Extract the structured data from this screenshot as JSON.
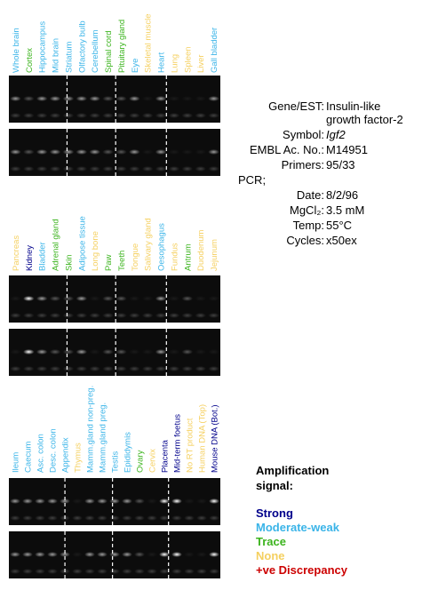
{
  "groups": [
    {
      "lanes": [
        {
          "name": "Whole brain",
          "color": "#3ab4e8"
        },
        {
          "name": "Cortex",
          "color": "#3cb41e"
        },
        {
          "name": "Hippocampus",
          "color": "#3ab4e8"
        },
        {
          "name": "Mid brain",
          "color": "#3ab4e8"
        },
        {
          "name": "Striatum",
          "color": "#3ab4e8"
        },
        {
          "name": "Olfactory bulb",
          "color": "#3ab4e8"
        },
        {
          "name": "Cerebellum",
          "color": "#3ab4e8"
        },
        {
          "name": "Spinal cord",
          "color": "#3cb41e"
        },
        {
          "name": "Pituitary gland",
          "color": "#3cb41e"
        },
        {
          "name": "Eye",
          "color": "#3ab4e8"
        },
        {
          "name": "Skeletal muscle",
          "color": "#f5d060"
        },
        {
          "name": "Heart",
          "color": "#3ab4e8"
        },
        {
          "name": "Lung",
          "color": "#f5d060"
        },
        {
          "name": "Spleen",
          "color": "#f5d060"
        },
        {
          "name": "Liver",
          "color": "#f5d060"
        },
        {
          "name": "Gall bladder",
          "color": "#3ab4e8"
        }
      ]
    },
    {
      "lanes": [
        {
          "name": "Pancreas",
          "color": "#f5d060"
        },
        {
          "name": "Kidney",
          "color": "#00008b"
        },
        {
          "name": "Bladder",
          "color": "#3ab4e8"
        },
        {
          "name": "Adrenal gland",
          "color": "#3cb41e"
        },
        {
          "name": "Skin",
          "color": "#3cb41e"
        },
        {
          "name": "Adipose tissue",
          "color": "#3ab4e8"
        },
        {
          "name": "Long bone",
          "color": "#f5d060"
        },
        {
          "name": "Paw",
          "color": "#3cb41e"
        },
        {
          "name": "Teeth",
          "color": "#3cb41e"
        },
        {
          "name": "Tongue",
          "color": "#f5d060"
        },
        {
          "name": "Salivary gland",
          "color": "#f5d060"
        },
        {
          "name": "Oesophagus",
          "color": "#3ab4e8"
        },
        {
          "name": "Fundus",
          "color": "#f5d060"
        },
        {
          "name": "Antrum",
          "color": "#3cb41e"
        },
        {
          "name": "Duodenum",
          "color": "#f5d060"
        },
        {
          "name": "Jejunum",
          "color": "#f5d060"
        }
      ]
    },
    {
      "lanes": [
        {
          "name": "Ileum",
          "color": "#3ab4e8"
        },
        {
          "name": "Caecum",
          "color": "#3ab4e8"
        },
        {
          "name": "Asc. colon",
          "color": "#3ab4e8"
        },
        {
          "name": "Desc. colon",
          "color": "#3ab4e8"
        },
        {
          "name": "Appendix",
          "color": "#3ab4e8"
        },
        {
          "name": "Thymus",
          "color": "#f5d060"
        },
        {
          "name": "Mamm.gland non-preg.",
          "color": "#3ab4e8"
        },
        {
          "name": "Mamm.gland preg.",
          "color": "#3ab4e8"
        },
        {
          "name": "Testis",
          "color": "#3ab4e8"
        },
        {
          "name": "Epididymis",
          "color": "#3ab4e8"
        },
        {
          "name": "Ovary",
          "color": "#3cb41e"
        },
        {
          "name": "Cervix",
          "color": "#f5d060"
        },
        {
          "name": "Placenta",
          "color": "#00008b"
        },
        {
          "name": "Mid-term foetus",
          "color": "#00008b"
        },
        {
          "name": "No RT product",
          "color": "#f5d060"
        },
        {
          "name": "Human DNA (Top)",
          "color": "#f5d060"
        },
        {
          "name": "Mouse DNA (Bot.)",
          "color": "#00008b"
        }
      ]
    }
  ],
  "info": {
    "rows": [
      {
        "label": "Gene/EST:",
        "value": [
          "Insulin-like",
          "growth factor-2"
        ]
      },
      {
        "label": "Symbol:",
        "value": [
          "Igf2"
        ]
      },
      {
        "label": "EMBL Ac. No.:",
        "value": [
          "M14951"
        ]
      },
      {
        "label": "Primers:",
        "value": [
          "95/33"
        ]
      }
    ],
    "pcr": "PCR;",
    "pcr_rows": [
      {
        "label": "Date:",
        "value": [
          "8/2/96"
        ]
      },
      {
        "label": "MgCl₂:",
        "value": [
          "3.5 mM"
        ]
      },
      {
        "label": "Temp:",
        "value": [
          "55°C"
        ]
      },
      {
        "label": "Cycles:",
        "value": [
          "x50ex"
        ]
      }
    ]
  },
  "legend": {
    "title": [
      "Amplification",
      "signal:"
    ],
    "items": [
      {
        "name": "Strong",
        "color": "#00008b"
      },
      {
        "name": "Moderate-weak",
        "color": "#3ab4e8"
      },
      {
        "name": "Trace",
        "color": "#3cb41e"
      },
      {
        "name": "None",
        "color": "#f5d060"
      },
      {
        "name": "+ve Discrepancy",
        "color": "#cc0000"
      }
    ]
  }
}
